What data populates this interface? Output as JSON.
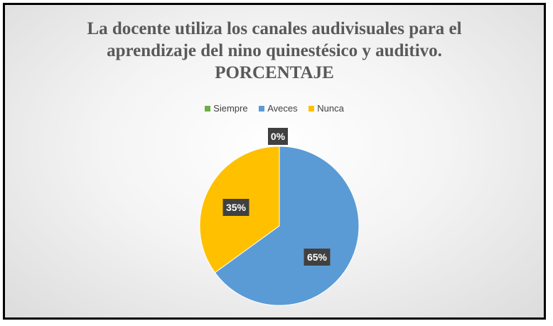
{
  "chart_data": {
    "type": "pie",
    "title_lines": [
      "La docente utiliza los canales audivisuales para el",
      "aprendizaje del nino quinestésico y auditivo.",
      "PORCENTAJE"
    ],
    "categories": [
      "Siempre",
      "Aveces",
      "Nunca"
    ],
    "values": [
      0,
      65,
      35
    ],
    "labels": [
      "0%",
      "65%",
      "35%"
    ],
    "colors": [
      "#70ad47",
      "#5b9bd5",
      "#ffc000"
    ],
    "legend_position": "top"
  }
}
